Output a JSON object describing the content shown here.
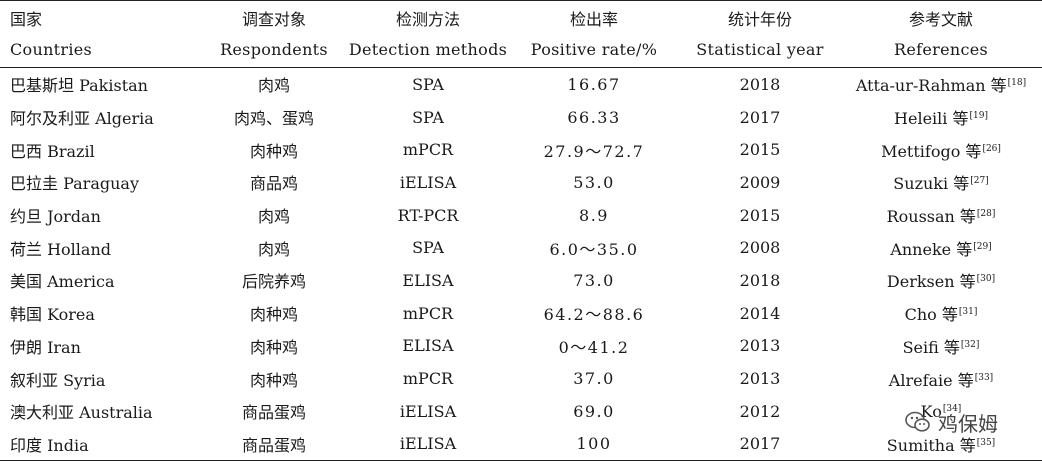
{
  "table": {
    "headers": [
      {
        "zh": "国家",
        "en": "Countries"
      },
      {
        "zh": "调查对象",
        "en": "Respondents"
      },
      {
        "zh": "检测方法",
        "en": "Detection methods"
      },
      {
        "zh": "检出率",
        "en": "Positive rate/%"
      },
      {
        "zh": "统计年份",
        "en": "Statistical year"
      },
      {
        "zh": "参考文献",
        "en": "References"
      }
    ],
    "rows": [
      {
        "country": "巴基斯坦 Pakistan",
        "respondents": "肉鸡",
        "method": "SPA",
        "rate": "16.67",
        "year": "2018",
        "ref": "Atta-ur-Rahman 等",
        "ref_no": "[18]"
      },
      {
        "country": "阿尔及利亚 Algeria",
        "respondents": "肉鸡、蛋鸡",
        "method": "SPA",
        "rate": "66.33",
        "year": "2017",
        "ref": "Heleili 等",
        "ref_no": "[19]"
      },
      {
        "country": "巴西 Brazil",
        "respondents": "肉种鸡",
        "method": "mPCR",
        "rate": "27.9～72.7",
        "year": "2015",
        "ref": "Mettifogo 等",
        "ref_no": "[26]"
      },
      {
        "country": "巴拉圭 Paraguay",
        "respondents": "商品鸡",
        "method": "iELISA",
        "rate": "53.0",
        "year": "2009",
        "ref": "Suzuki 等",
        "ref_no": "[27]"
      },
      {
        "country": "约旦 Jordan",
        "respondents": "肉鸡",
        "method": "RT-PCR",
        "rate": "8.9",
        "year": "2015",
        "ref": "Roussan 等",
        "ref_no": "[28]"
      },
      {
        "country": "荷兰 Holland",
        "respondents": "肉鸡",
        "method": "SPA",
        "rate": "6.0～35.0",
        "year": "2008",
        "ref": "Anneke 等",
        "ref_no": "[29]"
      },
      {
        "country": "美国 America",
        "respondents": "后院养鸡",
        "method": "ELISA",
        "rate": "73.0",
        "year": "2018",
        "ref": "Derksen 等",
        "ref_no": "[30]"
      },
      {
        "country": "韩国 Korea",
        "respondents": "肉种鸡",
        "method": "mPCR",
        "rate": "64.2～88.6",
        "year": "2014",
        "ref": "Cho 等",
        "ref_no": "[31]"
      },
      {
        "country": "伊朗 Iran",
        "respondents": "肉种鸡",
        "method": "ELISA",
        "rate": "0～41.2",
        "year": "2013",
        "ref": "Seifi 等",
        "ref_no": "[32]"
      },
      {
        "country": "叙利亚 Syria",
        "respondents": "肉种鸡",
        "method": "mPCR",
        "rate": "37.0",
        "year": "2013",
        "ref": "Alrefaie 等",
        "ref_no": "[33]"
      },
      {
        "country": "澳大利亚 Australia",
        "respondents": "商品蛋鸡",
        "method": "iELISA",
        "rate": "69.0",
        "year": "2012",
        "ref": "Ko",
        "ref_no": "[34]"
      },
      {
        "country": "印度 India",
        "respondents": "商品蛋鸡",
        "method": "iELISA",
        "rate": "100",
        "year": "2017",
        "ref": "Sumitha 等",
        "ref_no": "[35]"
      }
    ]
  },
  "watermark": {
    "text": "鸡保姆",
    "icon": "wechat-logo-icon"
  }
}
